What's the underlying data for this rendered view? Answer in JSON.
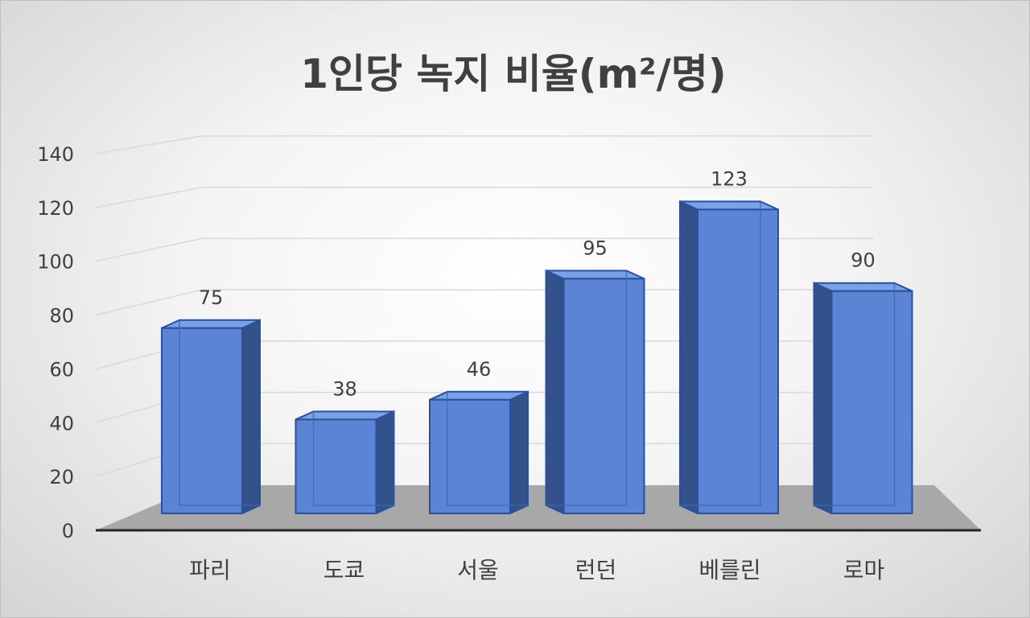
{
  "chart_data": {
    "type": "bar",
    "title": "1인당 녹지 비율(m²/명)",
    "categories": [
      "파리",
      "도쿄",
      "서울",
      "런던",
      "베를린",
      "로마"
    ],
    "values": [
      75,
      38,
      46,
      95,
      123,
      90
    ],
    "ylim": [
      0,
      140
    ],
    "yticks": [
      0,
      20,
      40,
      60,
      80,
      100,
      120,
      140
    ],
    "xlabel": "",
    "ylabel": "",
    "grid": true,
    "legend": "none",
    "data_labels": true,
    "style": "3d-column",
    "colors": {
      "bar_front": "#5b85d4",
      "bar_side": "#34528a",
      "bar_top": "#7aa0e6",
      "bar_edge": "#2a4f9e",
      "floor": "#a8a8a8",
      "grid": "#d9d9d9",
      "axis": "#262626",
      "text": "#404040"
    }
  }
}
